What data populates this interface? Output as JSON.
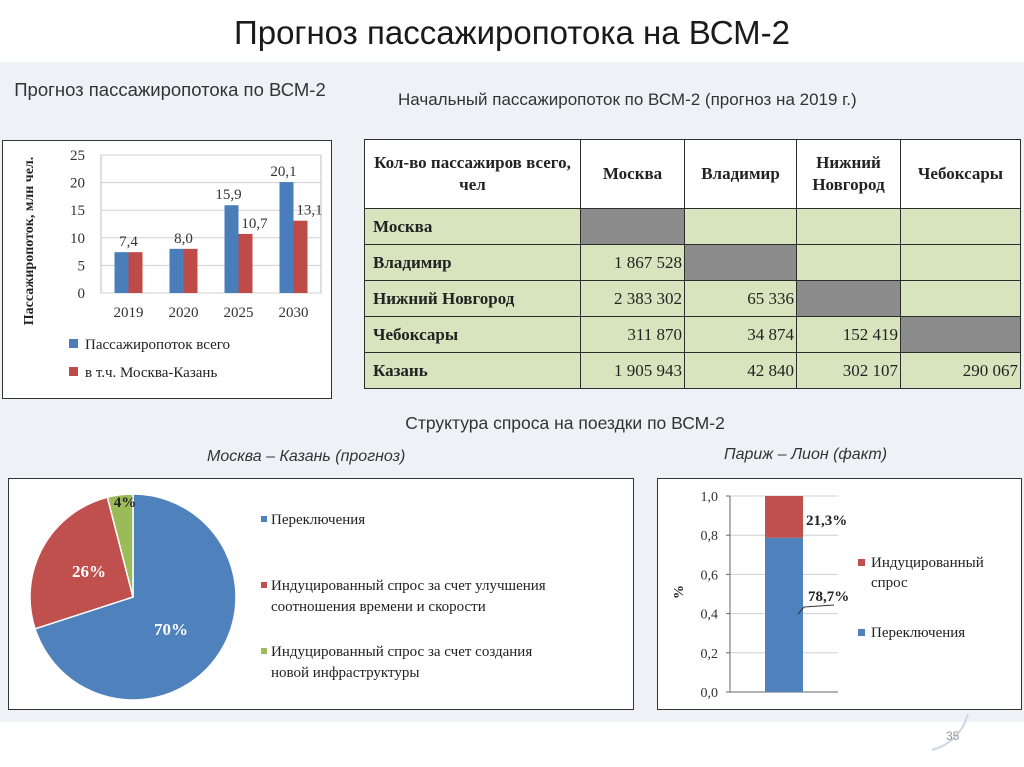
{
  "slide": {
    "title": "Прогноз пассажиропотока на ВСМ-2",
    "number": "35"
  },
  "chart_data": [
    {
      "type": "bar",
      "title": "Прогноз пассажиропотока по ВСМ-2",
      "categories": [
        "2019",
        "2020",
        "2025",
        "2030"
      ],
      "series": [
        {
          "name": "Пассажиропоток всего",
          "values": [
            7.4,
            8.0,
            15.9,
            20.1
          ],
          "labels": [
            "7,4",
            "8,0",
            "15,9",
            "20,1"
          ],
          "color": "#4a7ebb"
        },
        {
          "name": "в т.ч. Москва-Казань",
          "values": [
            7.4,
            8.0,
            10.7,
            13.1
          ],
          "labels": [
            "",
            "",
            "10,7",
            "13,1"
          ],
          "color": "#be4b48"
        }
      ],
      "ylabel": "Пассажиропоток, млн чел.",
      "ylim": [
        0,
        25
      ],
      "yticks": [
        "0",
        "5",
        "10",
        "15",
        "20",
        "25"
      ],
      "grid": true,
      "legend": "bottom"
    },
    {
      "type": "table",
      "title": "Начальный пассажиропоток по ВСМ-2 (прогноз на 2019 г.)",
      "corner": "Кол-во пассажиров всего, чел",
      "columns": [
        "Москва",
        "Владимир",
        "Нижний Новгород",
        "Чебоксары"
      ],
      "rows": [
        {
          "name": "Москва",
          "cells": [
            "",
            "",
            "",
            ""
          ]
        },
        {
          "name": "Владимир",
          "cells": [
            "1 867 528",
            "",
            "",
            ""
          ]
        },
        {
          "name": "Нижний Новгород",
          "cells": [
            "2 383 302",
            "65 336",
            "",
            ""
          ]
        },
        {
          "name": "Чебоксары",
          "cells": [
            "311 870",
            "34 874",
            "152 419",
            ""
          ]
        },
        {
          "name": "Казань",
          "cells": [
            "1 905 943",
            "42 840",
            "302 107",
            "290 067"
          ]
        }
      ]
    },
    {
      "type": "pie",
      "section_title": "Структура спроса на поездки по ВСМ-2",
      "subtitle": "Москва – Казань (прогноз)",
      "slices": [
        {
          "name": "Переключения",
          "value": 70,
          "label": "70%",
          "color": "#4f81bd"
        },
        {
          "name": "Индуцированный спрос за счет улучшения соотношения времени и скорости",
          "value": 26,
          "label": "26%",
          "color": "#c0504d"
        },
        {
          "name": "Индуцированный спрос за счет создания новой инфраструктуры",
          "value": 4,
          "label": "4%",
          "color": "#9bbb59"
        }
      ],
      "legend": "right"
    },
    {
      "type": "bar",
      "stacked": true,
      "subtitle": "Париж – Лион (факт)",
      "ylabel": "%",
      "ylim": [
        0,
        1.0
      ],
      "yticks": [
        "0,0",
        "0,2",
        "0,4",
        "0,6",
        "0,8",
        "1,0"
      ],
      "series": [
        {
          "name": "Переключения",
          "value": 0.787,
          "label": "78,7%",
          "color": "#4f81bd"
        },
        {
          "name": "Индуцированный спрос",
          "value": 0.213,
          "label": "21,3%",
          "color": "#c0504d"
        }
      ],
      "legend": "right"
    }
  ]
}
